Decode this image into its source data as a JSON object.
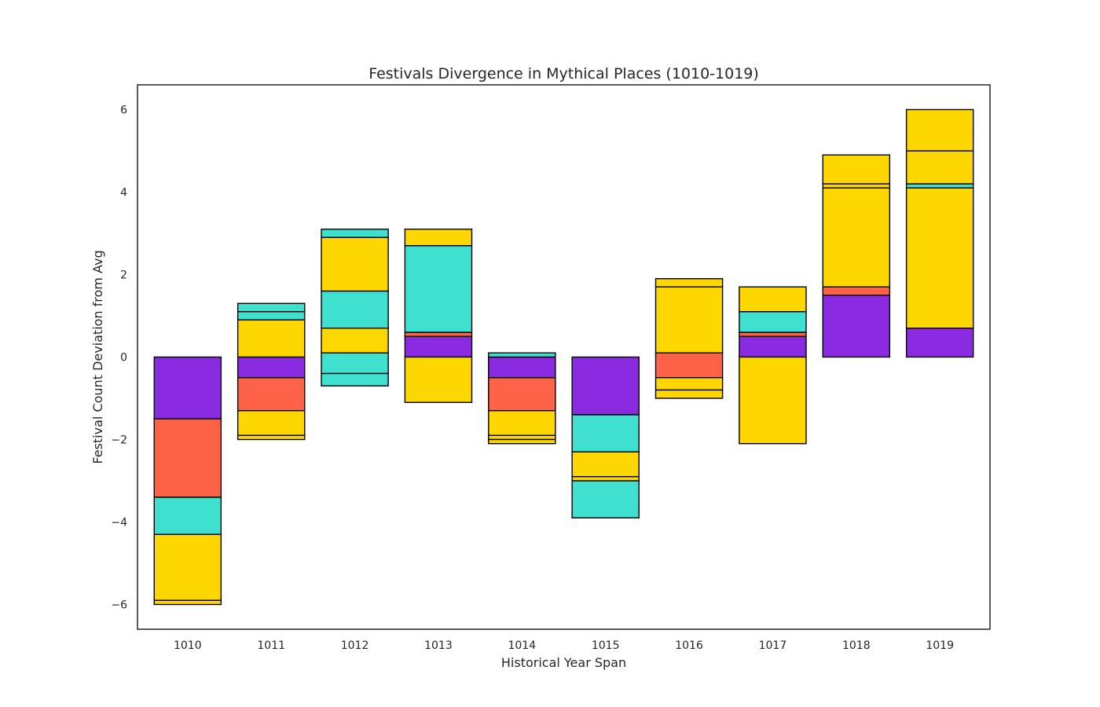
{
  "chart_data": {
    "type": "bar",
    "subtype": "stacked-diverging",
    "title": "Festivals Divergence in Mythical Places (1010-1019)",
    "xlabel": "Historical Year Span",
    "ylabel": "Festival Count Deviation from Avg",
    "categories": [
      "1010",
      "1011",
      "1012",
      "1013",
      "1014",
      "1015",
      "1016",
      "1017",
      "1018",
      "1019"
    ],
    "ylim": [
      -6.6,
      6.6
    ],
    "yticks": [
      -6,
      -4,
      -2,
      0,
      2,
      4,
      6
    ],
    "ytick_labels": [
      "−6",
      "−4",
      "−2",
      "0",
      "2",
      "4",
      "6"
    ],
    "grid": false,
    "legend": "none",
    "edge_color": "#000000",
    "series": [
      {
        "color": "#8A2BE2",
        "segments": [
          [
            [
              0,
              -1.5
            ]
          ],
          [
            [
              0,
              -0.5
            ]
          ],
          [],
          [
            [
              0,
              0.5
            ]
          ],
          [
            [
              0,
              -0.5
            ]
          ],
          [
            [
              0,
              -1.4
            ]
          ],
          [],
          [
            [
              0,
              0.5
            ]
          ],
          [
            [
              0,
              1.5
            ]
          ],
          [
            [
              0,
              0.7
            ]
          ]
        ]
      },
      {
        "color": "#FF6347",
        "segments": [
          [
            [
              -1.5,
              -3.4
            ]
          ],
          [
            [
              -0.5,
              -1.3
            ]
          ],
          [],
          [
            [
              0.5,
              0.6
            ]
          ],
          [
            [
              -0.5,
              -1.3
            ]
          ],
          [],
          [
            [
              0.1,
              -0.5
            ]
          ],
          [
            [
              0.5,
              0.6
            ]
          ],
          [
            [
              1.5,
              1.7
            ]
          ],
          []
        ]
      },
      {
        "color": "#40E0D0",
        "segments": [
          [
            [
              -3.4,
              -4.3
            ]
          ],
          [
            [
              1.1,
              1.3
            ],
            [
              0.9,
              1.1
            ]
          ],
          [
            [
              0.1,
              -0.4
            ],
            [
              -0.4,
              -0.7
            ],
            [
              2.9,
              3.1
            ],
            [
              0.7,
              1.6
            ]
          ],
          [
            [
              0.6,
              2.7
            ]
          ],
          [
            [
              0,
              0.1
            ]
          ],
          [
            [
              -1.4,
              -2.3
            ],
            [
              -3.0,
              -3.9
            ]
          ],
          [],
          [
            [
              0.6,
              1.1
            ]
          ],
          [],
          [
            [
              4.1,
              4.2
            ]
          ]
        ]
      },
      {
        "color": "#FFD700",
        "segments": [
          [
            [
              -4.3,
              -5.9
            ],
            [
              -5.9,
              -6.0
            ]
          ],
          [
            [
              0,
              0.9
            ],
            [
              -1.3,
              -1.9
            ],
            [
              -1.9,
              -2.0
            ]
          ],
          [
            [
              0.1,
              0.7
            ],
            [
              1.6,
              2.9
            ]
          ],
          [
            [
              0,
              -1.1
            ],
            [
              2.7,
              3.1
            ]
          ],
          [
            [
              -1.3,
              -1.9
            ],
            [
              -1.9,
              -2.0
            ],
            [
              -2.0,
              -2.1
            ]
          ],
          [
            [
              -2.3,
              -2.9
            ],
            [
              -2.9,
              -3.0
            ]
          ],
          [
            [
              -0.5,
              -0.8
            ],
            [
              -0.8,
              -1.0
            ],
            [
              0.1,
              1.7
            ],
            [
              1.7,
              1.9
            ]
          ],
          [
            [
              0,
              -2.1
            ],
            [
              1.1,
              1.7
            ]
          ],
          [
            [
              1.7,
              4.1
            ],
            [
              4.1,
              4.2
            ],
            [
              4.2,
              4.9
            ]
          ],
          [
            [
              0.7,
              4.1
            ],
            [
              4.2,
              5.0
            ],
            [
              5.0,
              6.0
            ]
          ]
        ]
      }
    ]
  }
}
